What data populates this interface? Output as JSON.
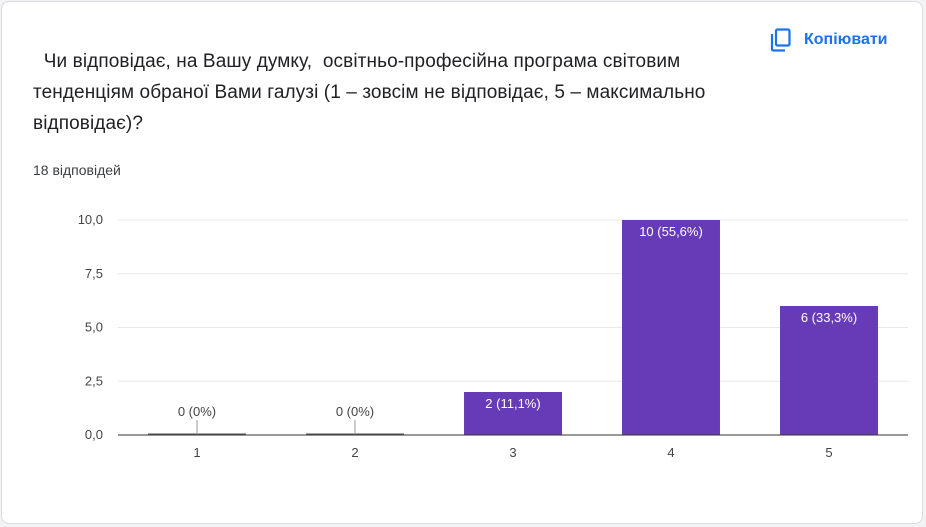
{
  "question": "  Чи відповідає, на Вашу думку,  освітньо-професійна програма світовим тенденціям обраної Вами галузі (1 – зовсім не відповідає, 5 – максимально відповідає)?",
  "copy_button": {
    "label": "Копіювати",
    "icon": "copy-icon"
  },
  "response_count": "18 відповідей",
  "colors": {
    "bar": "#673ab7",
    "accent": "#1a73e8",
    "grid": "#e8e8e8",
    "axis": "#333333"
  },
  "chart_data": {
    "type": "bar",
    "categories": [
      "1",
      "2",
      "3",
      "4",
      "5"
    ],
    "values": [
      0,
      0,
      2,
      10,
      6
    ],
    "data_labels": [
      "0 (0%)",
      "0 (0%)",
      "2 (11,1%)",
      "10 (55,6%)",
      "6 (33,3%)"
    ],
    "y_ticks": [
      "0,0",
      "2,5",
      "5,0",
      "7,5",
      "10,0"
    ],
    "ylim": [
      0,
      10
    ],
    "grid": true,
    "title": "",
    "xlabel": "",
    "ylabel": ""
  }
}
